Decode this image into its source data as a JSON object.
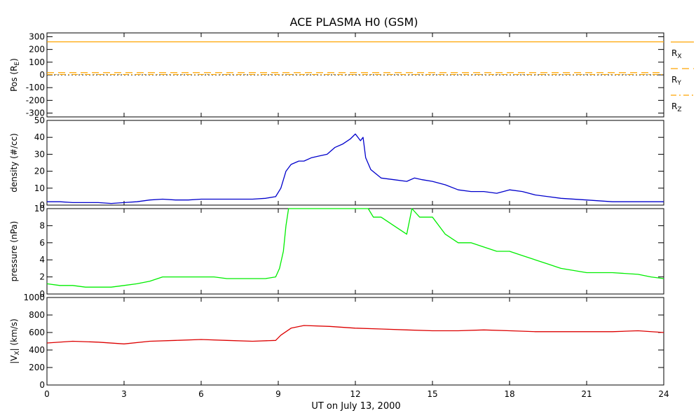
{
  "chart_data": {
    "type": "line",
    "title": "ACE PLASMA H0 (GSM)",
    "xlabel": "UT on July 13, 2000",
    "xlim": [
      0,
      24
    ],
    "xticks": [
      0,
      3,
      6,
      9,
      12,
      15,
      18,
      21,
      24
    ],
    "xtick_labels": [
      "0",
      "3",
      "6",
      "9",
      "12",
      "15",
      "18",
      "21",
      "24"
    ],
    "colors": {
      "rx": "#ffa500",
      "ry": "#ffa500",
      "rz": "#ffa500",
      "density": "#0000cc",
      "pressure": "#00ee00",
      "vx": "#dd0000",
      "zero_line": "#000000"
    },
    "panels": [
      {
        "id": "pos",
        "ylabel_main": "Pos (R",
        "ylabel_sub": "E",
        "ylabel_end": ")",
        "ylim": [
          -330,
          330
        ],
        "yticks": [
          300,
          200,
          100,
          0,
          -100,
          -200,
          -300
        ],
        "ytick_labels": [
          "300",
          "200",
          "100",
          "0",
          "-100",
          "-200",
          "-300"
        ],
        "series": [
          {
            "name": "R",
            "sub": "X",
            "style": "solid",
            "values": [
              260,
              260
            ]
          },
          {
            "name": "R",
            "sub": "Y",
            "style": "dashed",
            "values": [
              18,
              18
            ]
          },
          {
            "name": "R",
            "sub": "Z",
            "style": "dashdot",
            "values": [
              3,
              3
            ]
          }
        ],
        "zero_line": true
      },
      {
        "id": "density",
        "ylabel": "density (#/cc)",
        "ylim": [
          0,
          50
        ],
        "yticks": [
          0,
          10,
          20,
          30,
          40,
          50
        ],
        "ytick_labels": [
          "0",
          "10",
          "20",
          "30",
          "40",
          "50"
        ],
        "series": [
          {
            "x": [
              0,
              0.5,
              1,
              1.5,
              2,
              2.5,
              3,
              3.5,
              4,
              4.5,
              5,
              5.5,
              6,
              6.5,
              7,
              7.5,
              8,
              8.5,
              8.9,
              9.1,
              9.3,
              9.5,
              9.8,
              10,
              10.3,
              10.6,
              10.9,
              11.2,
              11.5,
              11.8,
              12,
              12.2,
              12.3,
              12.4,
              12.6,
              13,
              13.5,
              14,
              14.3,
              14.6,
              15,
              15.5,
              16,
              16.5,
              17,
              17.5,
              18,
              18.5,
              19,
              19.5,
              20,
              21,
              22,
              23,
              24
            ],
            "values": [
              2,
              2,
              1.5,
              1.5,
              1.5,
              1,
              1.5,
              2,
              3,
              3.5,
              3,
              3,
              3.5,
              3.5,
              3.5,
              3.5,
              3.5,
              4,
              5,
              10,
              20,
              24,
              26,
              26,
              28,
              29,
              30,
              34,
              36,
              39,
              42,
              38,
              40,
              28,
              21,
              16,
              15,
              14,
              16,
              15,
              14,
              12,
              9,
              8,
              8,
              7,
              9,
              8,
              6,
              5,
              4,
              3,
              2,
              2,
              2
            ]
          }
        ]
      },
      {
        "id": "pressure",
        "ylabel": "pressure (nPa)",
        "ylim": [
          0,
          10
        ],
        "yticks": [
          0,
          2,
          4,
          6,
          8,
          10
        ],
        "ytick_labels": [
          "0",
          "2",
          "4",
          "6",
          "8",
          "10"
        ],
        "series": [
          {
            "x": [
              0,
              0.5,
              1,
              1.5,
              2,
              2.5,
              3,
              3.5,
              4,
              4.5,
              5,
              5.5,
              6,
              6.5,
              7,
              7.5,
              8,
              8.5,
              8.9,
              9.05,
              9.2,
              9.3,
              9.4,
              12.5,
              12.7,
              13,
              13.5,
              14,
              14.2,
              14.5,
              15,
              15.5,
              16,
              16.5,
              17,
              17.5,
              18,
              18.5,
              19,
              19.5,
              20,
              21,
              22,
              23,
              23.5,
              24
            ],
            "values": [
              1.2,
              1,
              1,
              0.8,
              0.8,
              0.8,
              1,
              1.2,
              1.5,
              2,
              2,
              2,
              2,
              2,
              1.8,
              1.8,
              1.8,
              1.8,
              2,
              3,
              5,
              8,
              10,
              10,
              9,
              9,
              8,
              7,
              10,
              9,
              9,
              7,
              6,
              6,
              5.5,
              5,
              5,
              4.5,
              4,
              3.5,
              3,
              2.5,
              2.5,
              2.3,
              2,
              1.8
            ]
          }
        ]
      },
      {
        "id": "vx",
        "ylabel_main": "|V",
        "ylabel_sub": "X",
        "ylabel_end": "| (km/s)",
        "ylim": [
          0,
          1000
        ],
        "yticks": [
          0,
          200,
          400,
          600,
          800,
          1000
        ],
        "ytick_labels": [
          "0",
          "200",
          "400",
          "600",
          "800",
          "1000"
        ],
        "series": [
          {
            "x": [
              0,
              1,
              2,
              3,
              4,
              5,
              6,
              7,
              8,
              8.9,
              9.1,
              9.5,
              10,
              11,
              12,
              13,
              14,
              15,
              16,
              17,
              18,
              19,
              20,
              21,
              22,
              23,
              24
            ],
            "values": [
              480,
              500,
              490,
              470,
              500,
              510,
              520,
              510,
              500,
              510,
              570,
              650,
              680,
              670,
              650,
              640,
              630,
              620,
              620,
              630,
              620,
              610,
              610,
              610,
              610,
              620,
              600
            ]
          }
        ]
      }
    ]
  }
}
